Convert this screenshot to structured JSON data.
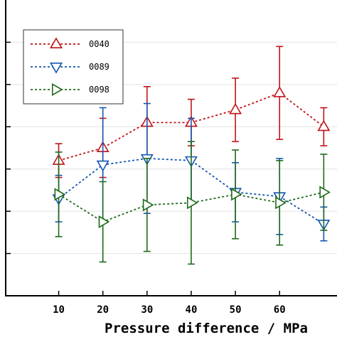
{
  "chart_data": {
    "type": "line",
    "xlabel": "Pressure difference / MPa",
    "ylabel": "",
    "title": "",
    "x_ticks": [
      "10",
      "20",
      "30",
      "40",
      "50",
      "60"
    ],
    "xlim": [
      -2,
      73
    ],
    "ylim": [
      0,
      7
    ],
    "grid": true,
    "legend_position": "top-left",
    "series": [
      {
        "name": "0040",
        "color": "#c0131a",
        "marker": "triangle-up",
        "x": [
          10,
          20,
          30,
          40,
          50,
          60,
          70
        ],
        "y": [
          3.2,
          3.5,
          4.1,
          4.1,
          4.4,
          4.8,
          4.0
        ],
        "err": [
          0.4,
          0.7,
          0.85,
          0.55,
          0.75,
          1.1,
          0.45
        ]
      },
      {
        "name": "0089",
        "color": "#1558b0",
        "marker": "triangle-down",
        "x": [
          10,
          20,
          30,
          40,
          50,
          60,
          70
        ],
        "y": [
          2.3,
          3.1,
          3.25,
          3.2,
          2.45,
          2.35,
          1.7
        ],
        "err": [
          0.55,
          1.35,
          1.3,
          1.0,
          0.7,
          0.9,
          0.4
        ]
      },
      {
        "name": "0098",
        "color": "#1f6a1a",
        "marker": "triangle-right",
        "x": [
          10,
          20,
          30,
          40,
          50,
          60,
          70
        ],
        "y": [
          2.4,
          1.75,
          2.15,
          2.2,
          2.4,
          2.2,
          2.45
        ],
        "err": [
          1.0,
          0.95,
          1.1,
          1.45,
          1.05,
          1.0,
          0.9
        ]
      }
    ]
  }
}
